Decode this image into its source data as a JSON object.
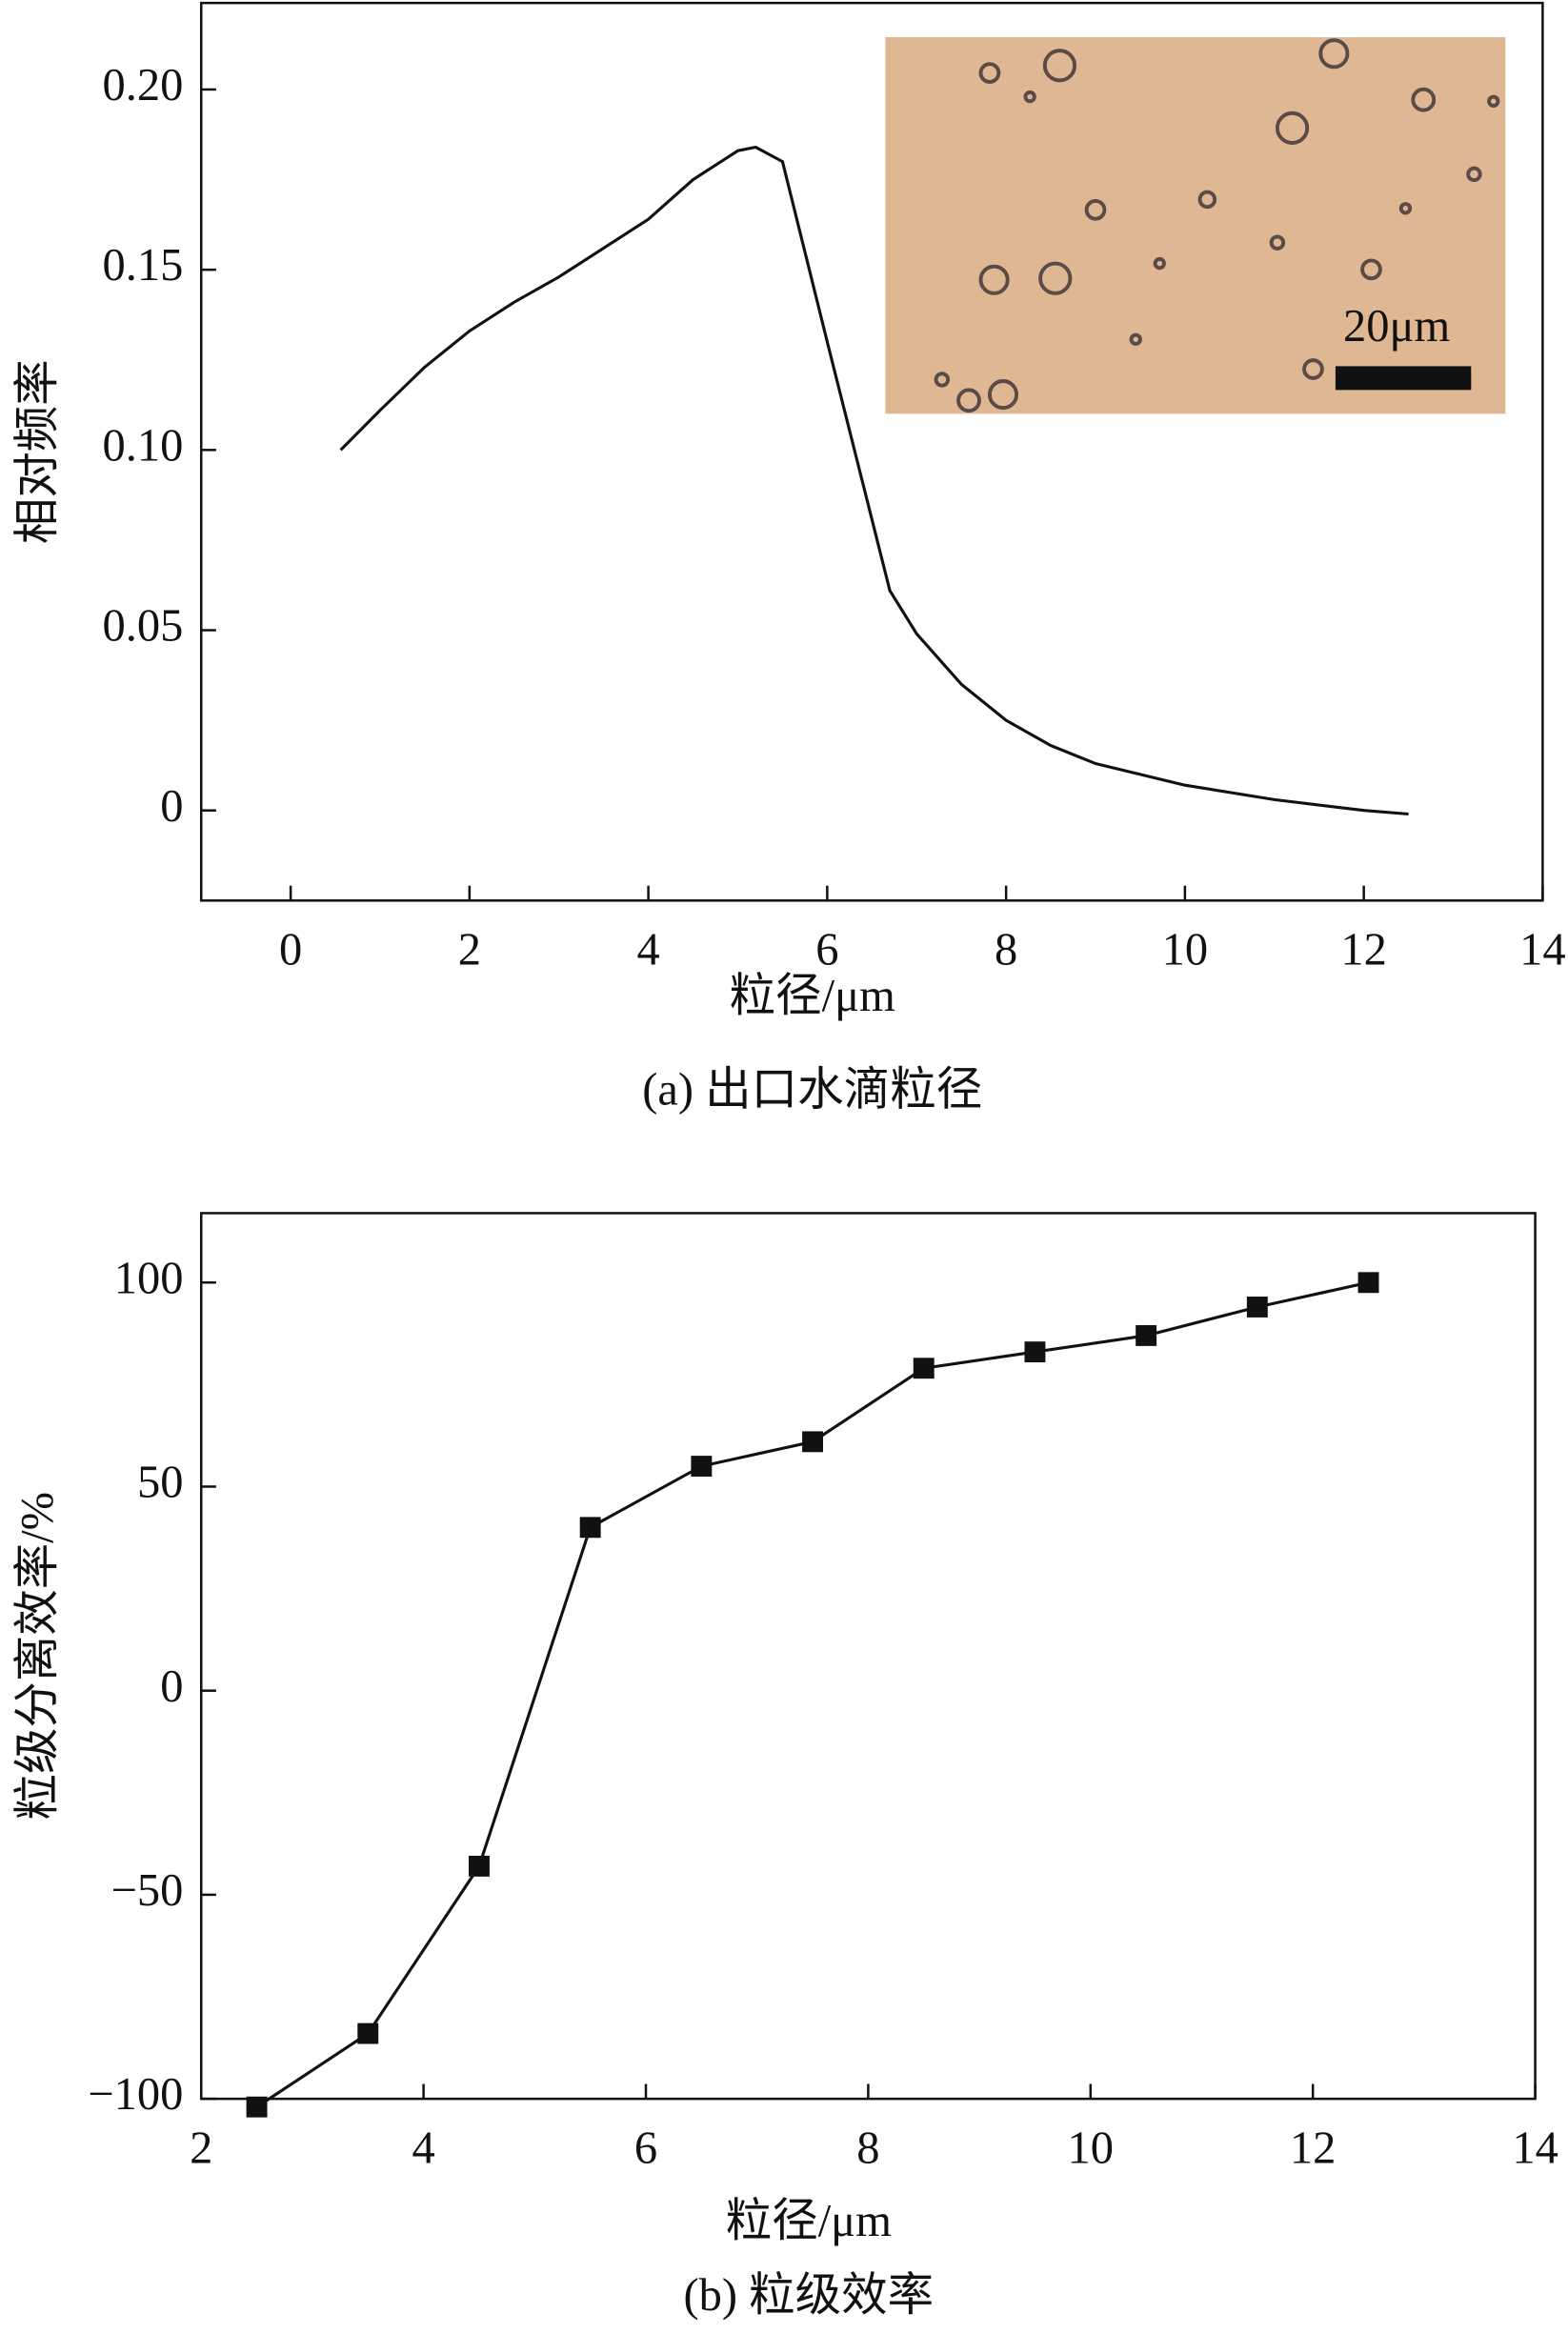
{
  "chart_data": [
    {
      "type": "line",
      "xlabel": "粒径/μm",
      "ylabel": "相对频率",
      "caption": "(a) 出口水滴粒径",
      "x": [
        0.56,
        1.0,
        1.5,
        2.0,
        2.5,
        3.0,
        3.5,
        4.0,
        4.5,
        5.0,
        5.2,
        5.5,
        6.0,
        6.7,
        7.0,
        7.5,
        8.0,
        8.5,
        9.0,
        9.5,
        10.0,
        11.0,
        12.0,
        12.5
      ],
      "values": [
        0.1,
        0.111,
        0.123,
        0.133,
        0.141,
        0.148,
        0.156,
        0.164,
        0.175,
        0.183,
        0.184,
        0.18,
        0.13,
        0.061,
        0.049,
        0.035,
        0.025,
        0.018,
        0.013,
        0.01,
        0.007,
        0.003,
        0.0,
        -0.001
      ],
      "color": "#111111",
      "marker": "none",
      "xlim": [
        -1,
        14
      ],
      "xticks": [
        0,
        2,
        4,
        6,
        8,
        10,
        12,
        14
      ],
      "ylim": [
        -0.025,
        0.224
      ],
      "yticks": [
        0,
        0.05,
        {
          "value": 0.1,
          "label": "0.10"
        },
        0.15,
        {
          "value": 0.2,
          "label": "0.20"
        }
      ],
      "inset": {
        "scale_label": "20μm"
      }
    },
    {
      "type": "line",
      "xlabel": "粒径/μm",
      "ylabel": "粒级分离效率/%",
      "caption": "(b) 粒级效率",
      "x": [
        2.5,
        3.5,
        4.5,
        5.5,
        6.5,
        7.5,
        8.5,
        9.5,
        10.5,
        11.5,
        12.5
      ],
      "values": [
        -102,
        -84,
        -43,
        40,
        55,
        61,
        79,
        83,
        87,
        94,
        100
      ],
      "color": "#111111",
      "marker": "square",
      "xlim": [
        2,
        14
      ],
      "xticks": [
        2,
        4,
        6,
        8,
        10,
        12,
        14
      ],
      "ylim": [
        -100,
        117
      ],
      "yticks": [
        {
          "value": -100,
          "label": "−100"
        },
        {
          "value": -50,
          "label": "−50"
        },
        0,
        50,
        100
      ]
    }
  ]
}
